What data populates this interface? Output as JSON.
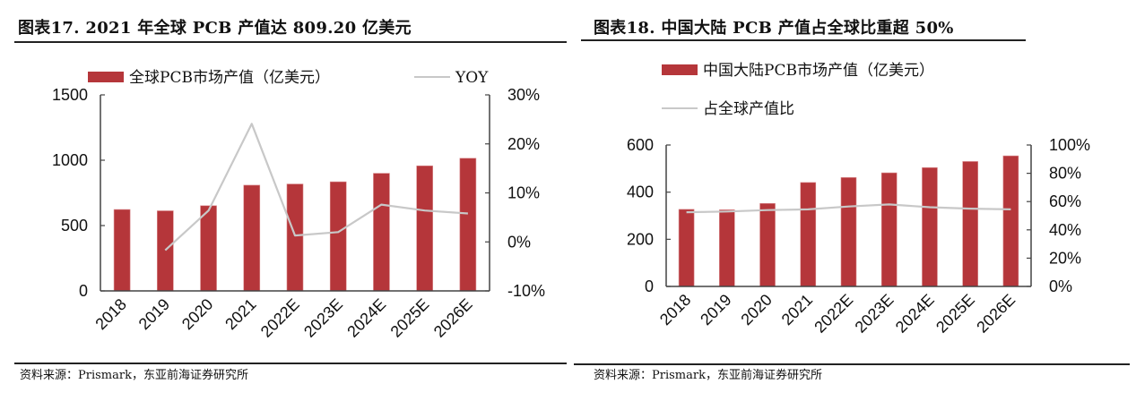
{
  "panels": [
    {
      "title": "图表17. 2021 年全球 PCB 产值达 809.20 亿美元",
      "source": "资料来源：Prismark，东亚前海证券研究所"
    },
    {
      "title": "图表18. 中国大陆 PCB 产值占全球比重超 50%",
      "source": "资料来源：Prismark，东亚前海证券研究所"
    }
  ],
  "colors": {
    "bar": "#b5363a",
    "line": "#c8c8c8",
    "axis": "#444444"
  },
  "chart_data": [
    {
      "type": "bar",
      "title": "图表17. 2021 年全球 PCB 产值达 809.20 亿美元",
      "categories": [
        "2018",
        "2019",
        "2020",
        "2021",
        "2022E",
        "2023E",
        "2024E",
        "2025E",
        "2026E"
      ],
      "series": [
        {
          "name": "全球PCB市场产值（亿美元）",
          "type": "bar",
          "axis": "left",
          "values": [
            623,
            613,
            652,
            809,
            818,
            835,
            900,
            957,
            1015
          ]
        },
        {
          "name": "YOY",
          "type": "line",
          "axis": "right",
          "values": [
            null,
            -1.7,
            6.4,
            24.1,
            1.3,
            2.0,
            7.6,
            6.4,
            5.8
          ]
        }
      ],
      "ylim": [
        0,
        1500
      ],
      "yticks": [
        "0",
        "500",
        "1000",
        "1500"
      ],
      "ytick_values": [
        0,
        500,
        1000,
        1500
      ],
      "y2lim": [
        -10,
        30
      ],
      "y2ticks": [
        "-10%",
        "0%",
        "10%",
        "20%",
        "30%"
      ],
      "y2tick_values": [
        -10,
        0,
        10,
        20,
        30
      ],
      "legend": "top",
      "grid": false
    },
    {
      "type": "bar",
      "title": "图表18. 中国大陆 PCB 产值占全球比重超 50%",
      "categories": [
        "2018",
        "2019",
        "2020",
        "2021",
        "2022E",
        "2023E",
        "2024E",
        "2025E",
        "2026E"
      ],
      "series": [
        {
          "name": "中国大陆PCB市场产值（亿美元）",
          "type": "bar",
          "axis": "left",
          "values": [
            327,
            325,
            352,
            441,
            462,
            482,
            504,
            530,
            554
          ]
        },
        {
          "name": "占全球产值比",
          "type": "line",
          "axis": "right",
          "values": [
            52.5,
            53.0,
            54.0,
            54.5,
            56.5,
            58.0,
            56.0,
            55.0,
            54.5
          ]
        }
      ],
      "ylim": [
        0,
        600
      ],
      "yticks": [
        "0",
        "200",
        "400",
        "600"
      ],
      "ytick_values": [
        0,
        200,
        400,
        600
      ],
      "y2lim": [
        0,
        100
      ],
      "y2ticks": [
        "0%",
        "20%",
        "40%",
        "60%",
        "80%",
        "100%"
      ],
      "y2tick_values": [
        0,
        20,
        40,
        60,
        80,
        100
      ],
      "legend": "top",
      "grid": false
    }
  ]
}
